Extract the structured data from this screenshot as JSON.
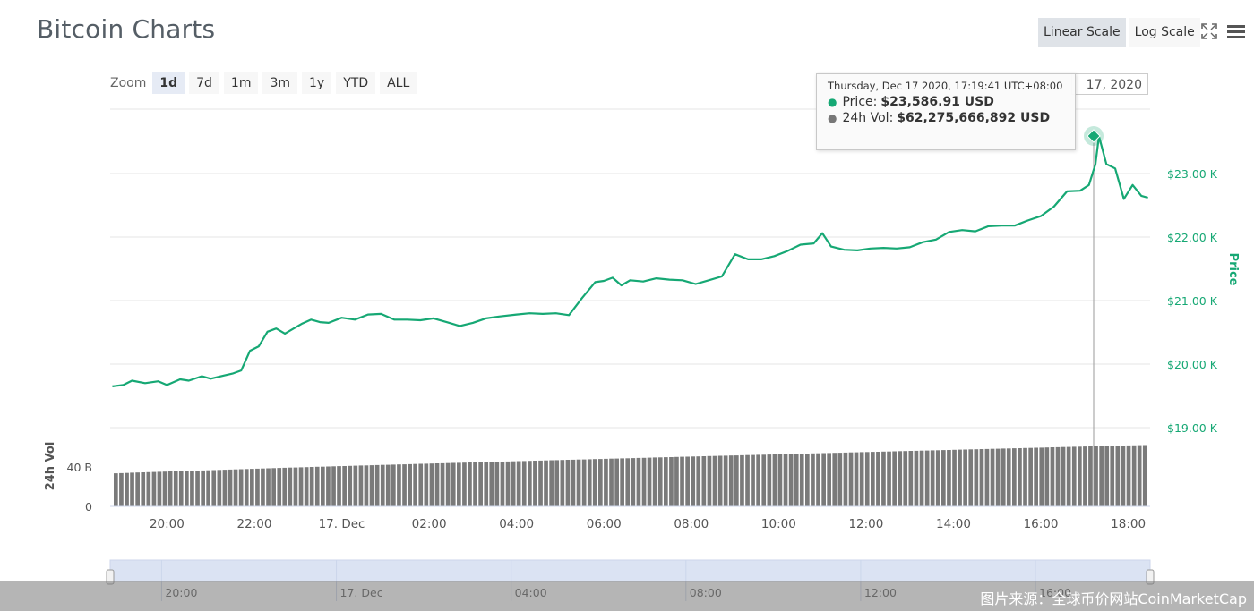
{
  "header": {
    "title": "Bitcoin Charts",
    "linear_scale": "Linear Scale",
    "log_scale": "Log Scale",
    "fullscreen_icon": "fullscreen-icon",
    "menu_icon": "hamburger-menu-icon"
  },
  "zoom": {
    "label": "Zoom",
    "buttons": [
      "1d",
      "7d",
      "1m",
      "3m",
      "1y",
      "YTD",
      "ALL"
    ],
    "active": "1d"
  },
  "date_range": {
    "to_value": "17, 2020"
  },
  "tooltip": {
    "header": "Thursday, Dec 17 2020, 17:19:41 UTC+08:00",
    "price_label": "Price:",
    "price_value": "$23,586.91 USD",
    "vol_label": "24h Vol:",
    "vol_value": "$62,275,666,892 USD"
  },
  "colors": {
    "price": "#16a874",
    "volume": "#7a7a7a",
    "grid": "#e6e6e6",
    "navigator": "#dbe3f3"
  },
  "watermark": "图片来源：全球币价网站CoinMarketCap",
  "chart_data": [
    {
      "type": "line",
      "name": "price",
      "ylabel": "Price",
      "ylim": [
        19000,
        23800
      ],
      "y_ticks": [
        19000,
        20000,
        21000,
        22000,
        23000
      ],
      "y_tick_labels": [
        "$19.00 K",
        "$20.00 K",
        "$21.00 K",
        "$22.00 K",
        "$23.00 K"
      ],
      "x_tick_labels": [
        "20:00",
        "22:00",
        "17. Dec",
        "02:00",
        "04:00",
        "06:00",
        "08:00",
        "10:00",
        "12:00",
        "14:00",
        "16:00",
        "18:00"
      ],
      "x_ticks_hours": [
        20,
        22,
        24,
        26,
        28,
        30,
        32,
        34,
        36,
        38,
        40,
        42
      ],
      "x_range_hours": [
        18.7,
        42.5
      ],
      "x": [
        18.75,
        19.0,
        19.2,
        19.5,
        19.8,
        20.0,
        20.3,
        20.5,
        20.8,
        21.0,
        21.3,
        21.5,
        21.7,
        21.9,
        22.1,
        22.3,
        22.5,
        22.7,
        22.9,
        23.1,
        23.3,
        23.5,
        23.7,
        24.0,
        24.3,
        24.6,
        24.9,
        25.2,
        25.5,
        25.8,
        26.1,
        26.4,
        26.7,
        27.0,
        27.3,
        27.6,
        28.0,
        28.3,
        28.6,
        28.9,
        29.2,
        29.5,
        29.8,
        30.0,
        30.2,
        30.4,
        30.6,
        30.9,
        31.2,
        31.5,
        31.8,
        32.1,
        32.4,
        32.7,
        33.0,
        33.3,
        33.6,
        33.9,
        34.2,
        34.5,
        34.8,
        35.0,
        35.2,
        35.5,
        35.8,
        36.1,
        36.4,
        36.7,
        37.0,
        37.3,
        37.6,
        37.9,
        38.2,
        38.5,
        38.8,
        39.1,
        39.4,
        39.7,
        40.0,
        40.3,
        40.6,
        40.9,
        41.1,
        41.25,
        41.33,
        41.5,
        41.7,
        41.9,
        42.1,
        42.3,
        42.45
      ],
      "values": [
        19650,
        19670,
        19740,
        19700,
        19730,
        19670,
        19760,
        19740,
        19810,
        19770,
        19820,
        19850,
        19900,
        20210,
        20280,
        20510,
        20560,
        20480,
        20560,
        20640,
        20700,
        20660,
        20650,
        20730,
        20700,
        20780,
        20790,
        20700,
        20700,
        20690,
        20720,
        20660,
        20600,
        20650,
        20720,
        20750,
        20780,
        20800,
        20790,
        20800,
        20770,
        21040,
        21290,
        21310,
        21360,
        21240,
        21320,
        21300,
        21350,
        21330,
        21320,
        21260,
        21320,
        21380,
        21730,
        21650,
        21650,
        21700,
        21780,
        21880,
        21900,
        22060,
        21850,
        21800,
        21790,
        21820,
        21830,
        21820,
        21840,
        21920,
        21960,
        22080,
        22110,
        22090,
        22170,
        22180,
        22180,
        22260,
        22330,
        22480,
        22720,
        22730,
        22820,
        23150,
        23587,
        23150,
        23080,
        22600,
        22820,
        22650,
        22620
      ]
    },
    {
      "type": "bar",
      "name": "24h Vol",
      "ylabel": "24h Vol",
      "ylim": [
        0,
        60000000000
      ],
      "y_ticks": [
        0,
        40000000000
      ],
      "y_tick_labels": [
        "0",
        "40 B"
      ],
      "x_range_hours": [
        18.7,
        42.5
      ],
      "bar_count": 190,
      "start_value": 33500000000,
      "end_value": 62300000000
    }
  ],
  "navigator": {
    "x_tick_labels": [
      "20:00",
      "17. Dec",
      "04:00",
      "08:00",
      "12:00",
      "16:00"
    ]
  }
}
